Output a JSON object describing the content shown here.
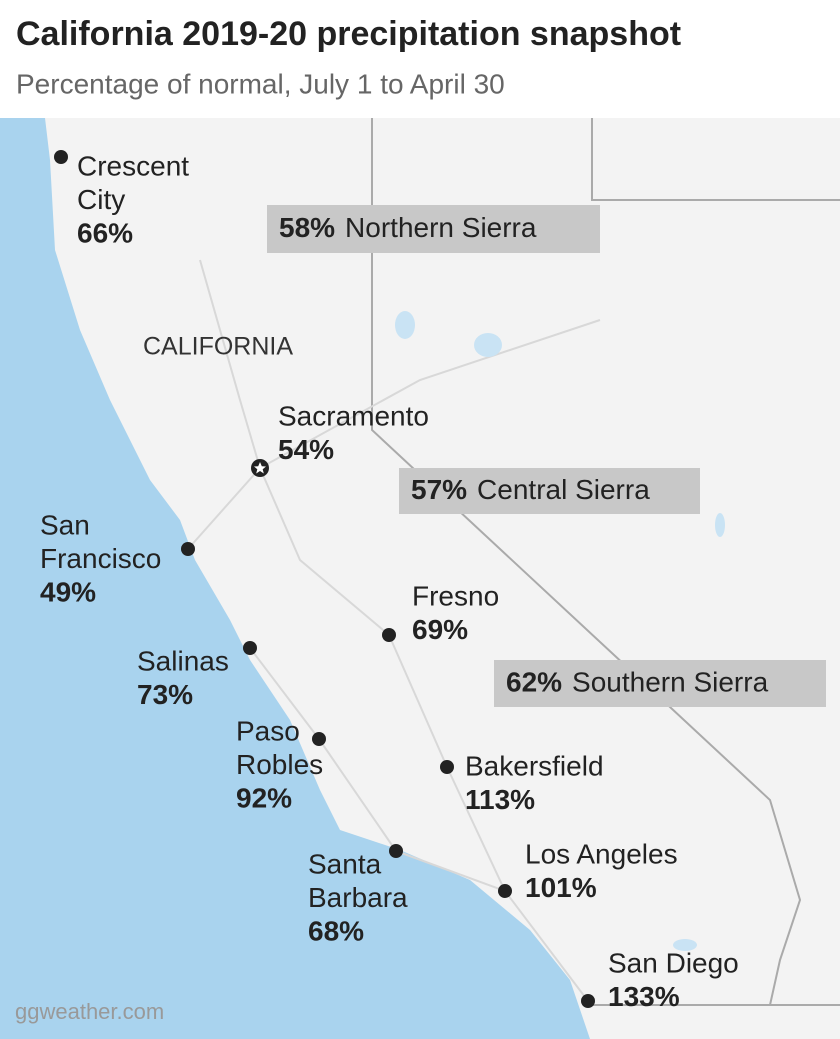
{
  "header": {
    "title": "California 2019-20 precipitation snapshot",
    "subtitle": "Percentage of normal, July 1 to April 30"
  },
  "map": {
    "state_label": "CALIFORNIA",
    "cities": [
      {
        "name": [
          "Crescent",
          "City"
        ],
        "percent": "66%",
        "capital": false
      },
      {
        "name": [
          "Sacramento"
        ],
        "percent": "54%",
        "capital": true
      },
      {
        "name": [
          "San",
          "Francisco"
        ],
        "percent": "49%",
        "capital": false
      },
      {
        "name": [
          "Fresno"
        ],
        "percent": "69%",
        "capital": false
      },
      {
        "name": [
          "Salinas"
        ],
        "percent": "73%",
        "capital": false
      },
      {
        "name": [
          "Paso",
          "Robles"
        ],
        "percent": "92%",
        "capital": false
      },
      {
        "name": [
          "Bakersfield"
        ],
        "percent": "113%",
        "capital": false
      },
      {
        "name": [
          "Santa",
          "Barbara"
        ],
        "percent": "68%",
        "capital": false
      },
      {
        "name": [
          "Los Angeles"
        ],
        "percent": "101%",
        "capital": false
      },
      {
        "name": [
          "San Diego"
        ],
        "percent": "133%",
        "capital": false
      }
    ],
    "regions": [
      {
        "percent": "58%",
        "name": "Northern Sierra"
      },
      {
        "percent": "57%",
        "name": "Central Sierra"
      },
      {
        "percent": "62%",
        "name": "Southern Sierra"
      }
    ]
  },
  "footer": {
    "credit": "ggweather.com"
  }
}
